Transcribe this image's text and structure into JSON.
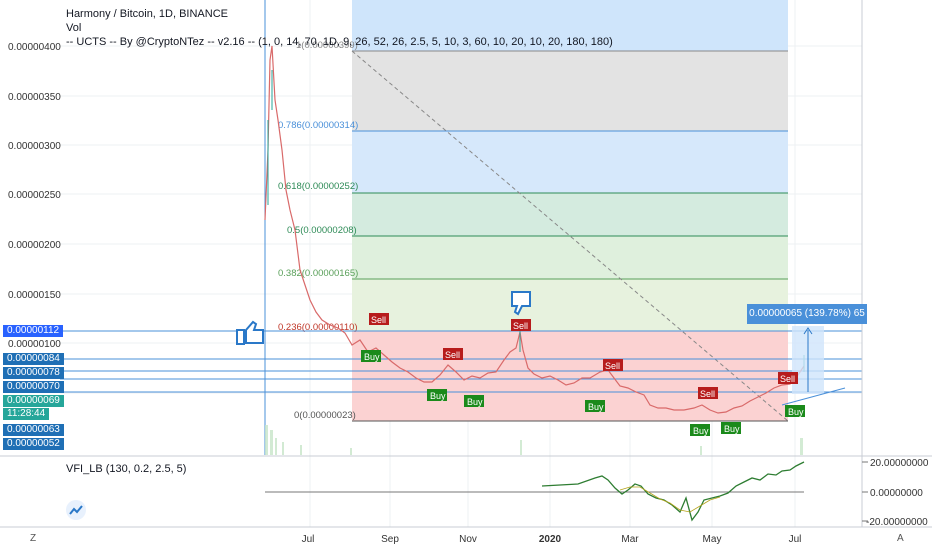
{
  "header": {
    "title": "Harmony / Bitcoin, 1D, BINANCE",
    "vol": "Vol",
    "indicator": "-- UCTS -- By @CryptoNTez -- v2.16 -- (1, 0, 14, 70, 1D, 9, 26, 52, 26, 2.5, 5, 10, 3, 60, 10, 20, 10, 20, 180, 180)"
  },
  "price_axis": [
    "0.00000400",
    "0.00000350",
    "0.00000300",
    "0.00000250",
    "0.00000200",
    "0.00000150",
    "0.00000100"
  ],
  "price_tags": [
    {
      "label": "0.00000112",
      "color": "#2962ff"
    },
    {
      "label": "0.00000084",
      "color": "#1f6fb5"
    },
    {
      "label": "0.00000078",
      "color": "#1f6fb5"
    },
    {
      "label": "0.00000070",
      "color": "#1f6fb5"
    },
    {
      "label": "0.00000069",
      "color": "#26a69a"
    },
    {
      "label": "11:28:44",
      "color": "#26a69a"
    },
    {
      "label": "0.00000063",
      "color": "#1f6fb5"
    },
    {
      "label": "0.00000052",
      "color": "#1f6fb5"
    }
  ],
  "time_axis": [
    "Jul",
    "Sep",
    "Nov",
    "2020",
    "Mar",
    "May",
    "Jul"
  ],
  "fib_levels": [
    {
      "label": "1(0.00000399)",
      "color": "#888888"
    },
    {
      "label": "0.786(0.00000314)",
      "color": "#4a90d9"
    },
    {
      "label": "0.618(0.00000252)",
      "color": "#2e8b57"
    },
    {
      "label": "0.5(0.00000208)",
      "color": "#2e8b57"
    },
    {
      "label": "0.382(0.00000165)",
      "color": "#5aa05a"
    },
    {
      "label": "0.236(0.00000110)",
      "color": "#c0392b"
    },
    {
      "label": "0(0.00000023)",
      "color": "#555555"
    }
  ],
  "signals": {
    "sell": "Sell",
    "buy": "Buy"
  },
  "measure": {
    "label": "0.00000065 (139.78%) 65"
  },
  "vfi": {
    "legend": "VFI_LB (130, 0.2, 2.5, 5)",
    "axis": [
      "20.00000000",
      "0.00000000",
      "-20.00000000"
    ]
  },
  "bottom": {
    "left": "Z",
    "right": "A"
  },
  "colors": {
    "up": "#26a69a",
    "down": "#ef5350",
    "sell": "#b71c1c",
    "buy": "#1b8a1b",
    "vfi": "#2e7d32"
  }
}
